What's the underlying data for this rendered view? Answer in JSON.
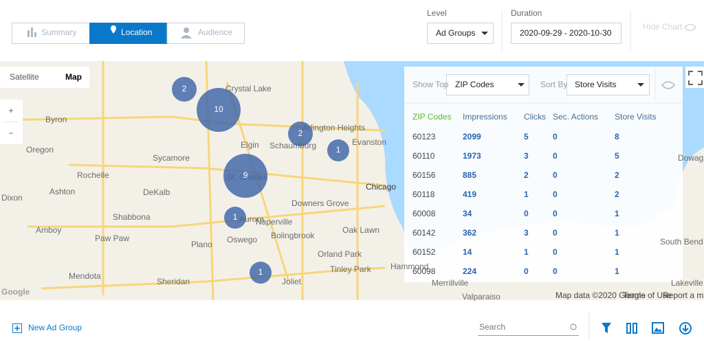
{
  "tabs": [
    "Summary",
    "Location",
    "Audience"
  ],
  "level": {
    "label": "Level",
    "value": "Ad Groups"
  },
  "duration": {
    "label": "Duration",
    "value": "2020-09-29 - 2020-10-30"
  },
  "hide_chart": "Hide Chart",
  "map_type": [
    "Satellite",
    "Map"
  ],
  "zoom": [
    "+",
    "−"
  ],
  "places": [
    "Crystal Lake",
    "Byron",
    "Oregon",
    "Sycamore",
    "Elgin",
    "Schaumburg",
    "Arlington Heights",
    "Evanston",
    "Rochelle",
    "DeKalb",
    "Ashton",
    "St. Charles",
    "Chicago",
    "Dixon",
    "Shabbona",
    "Aurora",
    "Naperville",
    "Downers Grove",
    "Oak Lawn",
    "Amboy",
    "Paw Paw",
    "Oswego",
    "Bolingbrook",
    "Plano",
    "Orland Park",
    "Tinley Park",
    "Mendota",
    "Sheridan",
    "Joliet",
    "Hammond",
    "Merrillville",
    "Valparaiso",
    "South Bend",
    "Dowagiac",
    "Lakeville"
  ],
  "clusters": [
    2,
    10,
    2,
    1,
    9,
    1,
    1
  ],
  "panel": {
    "show_top_label": "Show Top",
    "show_top_value": "ZIP Codes",
    "sort_by_label": "Sort By",
    "sort_by_value": "Store Visits"
  },
  "table": {
    "header": [
      "ZIP Codes",
      "Impressions",
      "Clicks",
      "Sec. Actions",
      "Store Visits"
    ],
    "rows": [
      [
        "60123",
        2099,
        5,
        0,
        8
      ],
      [
        "60110",
        1973,
        3,
        0,
        5
      ],
      [
        "60156",
        885,
        2,
        0,
        2
      ],
      [
        "60118",
        419,
        1,
        0,
        2
      ],
      [
        "60008",
        34,
        0,
        0,
        1
      ],
      [
        "60142",
        362,
        3,
        0,
        1
      ],
      [
        "60152",
        14,
        1,
        0,
        1
      ],
      [
        "60098",
        224,
        0,
        0,
        1
      ]
    ]
  },
  "attribution": [
    "Google",
    "Map data ©2020 Google",
    "Terms of Use",
    "Report a map err"
  ],
  "footer": {
    "new_ad_group": "New Ad Group",
    "search_placeholder": "Search"
  }
}
